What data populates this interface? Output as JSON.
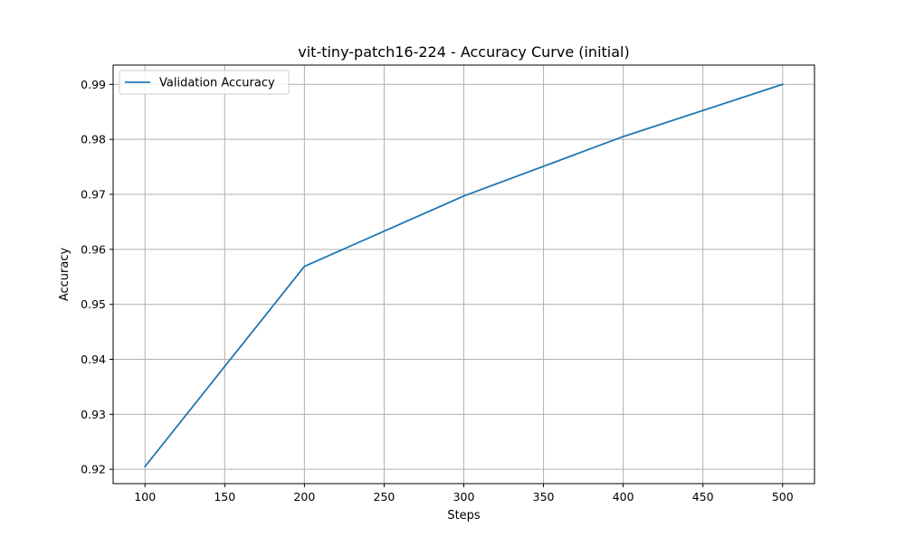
{
  "chart_data": {
    "type": "line",
    "title": "vit-tiny-patch16-224 - Accuracy Curve (initial)",
    "xlabel": "Steps",
    "ylabel": "Accuracy",
    "xlim": [
      80,
      520
    ],
    "ylim": [
      0.9174,
      0.9935
    ],
    "xticks": [
      100,
      150,
      200,
      250,
      300,
      350,
      400,
      450,
      500
    ],
    "xtick_labels": [
      "100",
      "150",
      "200",
      "250",
      "300",
      "350",
      "400",
      "450",
      "500"
    ],
    "yticks": [
      0.92,
      0.93,
      0.94,
      0.95,
      0.96,
      0.97,
      0.98,
      0.99
    ],
    "ytick_labels": [
      "0.92",
      "0.93",
      "0.94",
      "0.95",
      "0.96",
      "0.97",
      "0.98",
      "0.99"
    ],
    "grid": true,
    "legend_position": "top-left",
    "series": [
      {
        "name": "Validation Accuracy",
        "color": "#1f77b4",
        "x": [
          100,
          200,
          300,
          400,
          500
        ],
        "y": [
          0.9205,
          0.9569,
          0.9697,
          0.9805,
          0.99
        ]
      }
    ]
  }
}
